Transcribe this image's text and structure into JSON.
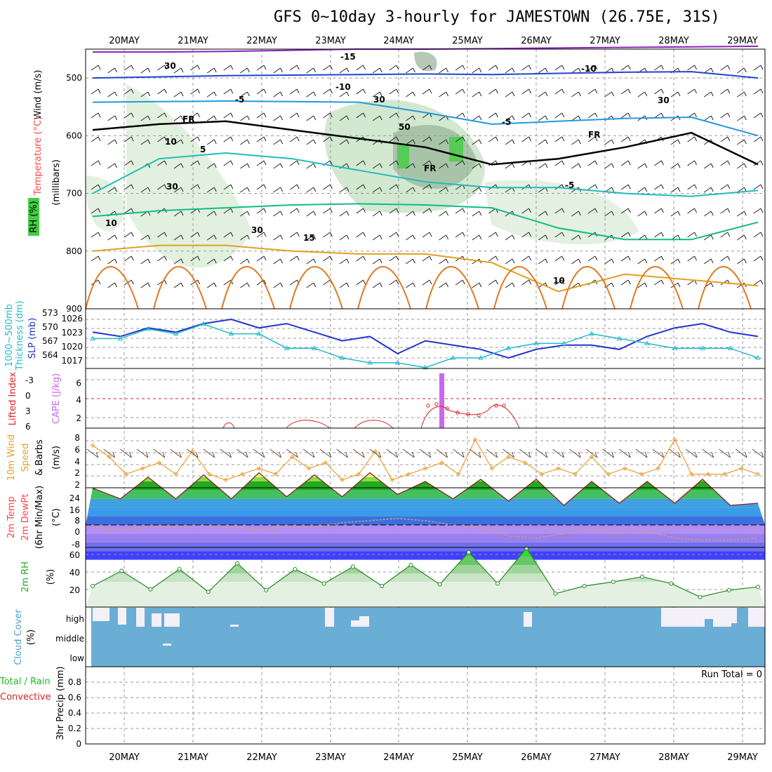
{
  "title": "GFS 0~10day 3-hourly for JAMESTOWN (26.75E, 31S)",
  "colors": {
    "wind_text": "#ff8800",
    "temp_text": "#ff4444",
    "rh_green": "#44cc44",
    "slp": "#2233cc",
    "thickness": "#22bbcc",
    "cape": "#cc66ee",
    "lifted": "#dd2222",
    "wind10": "#e8a030",
    "rain_total": "#22bb22",
    "cloud": "#6aaed6"
  },
  "chart_data": {
    "type": "line",
    "dates": [
      "20MAY",
      "21MAY",
      "22MAY",
      "23MAY",
      "24MAY",
      "25MAY",
      "26MAY",
      "27MAY",
      "28MAY",
      "29MAY"
    ],
    "panels": [
      {
        "id": "upper_air",
        "ylabel": [
          "Wind (m/s)",
          "Temperature (°C)",
          "RH (%)",
          "(millibars)"
        ],
        "yticks": [
          "500",
          "600",
          "700",
          "800",
          "900"
        ],
        "ylim": [
          900,
          450
        ],
        "contour_labels": [
          "-15",
          "-10",
          "-10",
          "-5",
          "-5",
          "-5",
          "5",
          "10",
          "10",
          "15",
          "FR",
          "FR",
          "FR",
          "30",
          "30",
          "30",
          "30",
          "30",
          "10",
          "50"
        ],
        "isotherms": [
          {
            "label": "-15",
            "values": [
              455,
              455,
              454,
              452,
              450,
              450,
              449,
              448,
              447,
              446,
              445
            ]
          },
          {
            "label": "-10",
            "values": [
              500,
              498,
              496,
              495,
              494,
              493,
              494,
              492,
              490,
              489,
              500
            ]
          },
          {
            "label": "-5",
            "values": [
              542,
              541,
              540,
              541,
              542,
              560,
              580,
              575,
              570,
              568,
              600
            ]
          },
          {
            "label": "FR",
            "values": [
              590,
              580,
              575,
              590,
              605,
              620,
              650,
              640,
              620,
              595,
              650
            ]
          },
          {
            "label": "5",
            "values": [
              700,
              640,
              630,
              640,
              660,
              680,
              690,
              690,
              700,
              705,
              695
            ]
          },
          {
            "label": "10",
            "values": [
              740,
              730,
              725,
              720,
              718,
              720,
              725,
              760,
              780,
              780,
              750
            ]
          },
          {
            "label": "15",
            "values": [
              800,
              790,
              790,
              800,
              805,
              805,
              820,
              870,
              840,
              850,
              860
            ]
          }
        ]
      },
      {
        "id": "slp_thickness",
        "ylabel_left": [
          "1000~500mb",
          "Thickness (dm)"
        ],
        "ylabel_right": "SLP (mb)",
        "yticks_left": [
          "573",
          "570",
          "567",
          "564"
        ],
        "yticks_right": [
          "1026",
          "1023",
          "1020",
          "1017"
        ],
        "series": [
          {
            "name": "SLP (mb)",
            "values": [
              1023,
              1022,
              1024,
              1023,
              1025,
              1026,
              1024,
              1025,
              1023,
              1021,
              1022,
              1018,
              1021,
              1020,
              1019,
              1017,
              1019,
              1020,
              1020,
              1019,
              1022,
              1024,
              1025,
              1023,
              1022
            ]
          },
          {
            "name": "Thickness (dm)",
            "values": [
              568,
              568,
              570,
              569,
              571,
              569,
              569,
              566,
              566,
              564,
              563,
              563,
              562,
              564,
              564,
              566,
              567,
              567,
              569,
              568,
              567,
              566,
              566,
              566,
              564
            ]
          }
        ]
      },
      {
        "id": "cape_li",
        "ylabel_left": "Lifted Index",
        "ylabel_right": "CAPE (J/kg)",
        "yticks_left": [
          "-3",
          "0",
          "3",
          "6"
        ],
        "yticks_right": [
          "6",
          "4",
          "2"
        ],
        "series": [
          {
            "name": "CAPE (J/kg)",
            "x_day": 4.6,
            "value": 7.5
          },
          {
            "name": "Lifted Index",
            "values": [
              null,
              null,
              null,
              null,
              null,
              5,
              null,
              null,
              5,
              null,
              3,
              null,
              4,
              null,
              null,
              3,
              0,
              1,
              2,
              1,
              null,
              null,
              null,
              null,
              null
            ]
          }
        ]
      },
      {
        "id": "wind10",
        "ylabel": [
          "10m Wind",
          "Speed",
          "(m/s)",
          "& Barbs"
        ],
        "yticks": [
          "8",
          "6",
          "4",
          "2",
          "2"
        ],
        "series": [
          {
            "name": "Speed",
            "values": [
              7,
              5,
              2,
              3,
              4,
              2,
              6,
              2,
              1,
              2,
              3,
              2,
              5,
              3,
              4,
              1,
              2,
              6,
              1,
              2,
              3,
              4,
              2,
              8,
              3,
              5,
              4,
              2,
              3,
              2,
              5,
              2,
              3,
              2,
              3,
              8,
              2,
              2,
              2,
              3,
              2
            ]
          }
        ]
      },
      {
        "id": "temp2m",
        "ylabel": [
          "2m Temp",
          "2m DewPt",
          "(6hr Min/Max)",
          "(°C)"
        ],
        "yticks": [
          "24",
          "16",
          "8",
          "0",
          "-8"
        ],
        "series": [
          {
            "name": "2m Temp",
            "values": [
              17,
              12,
              22,
              12,
              23,
              12,
              24,
              13,
              23,
              13,
              24,
              14,
              20,
              12,
              21,
              11,
              21,
              9,
              20,
              10,
              20,
              10,
              21,
              9,
              10
            ]
          },
          {
            "name": "2m DewPt",
            "values": [
              -1,
              -2,
              -1,
              -1,
              0,
              -1,
              -2,
              -1,
              -1,
              1,
              2,
              3,
              2,
              0,
              -1,
              -5,
              -6,
              -4,
              -2,
              -4,
              -3,
              -6,
              -7,
              -7,
              -6
            ]
          }
        ]
      },
      {
        "id": "rh2m",
        "ylabel": [
          "2m RH",
          "(%)"
        ],
        "yticks": [
          "60",
          "40",
          "20"
        ],
        "series": [
          {
            "name": "2m RH",
            "values": [
              25,
              43,
              21,
              45,
              18,
              52,
              20,
              45,
              28,
              48,
              25,
              50,
              27,
              65,
              28,
              70,
              16,
              25,
              30,
              36,
              28,
              12,
              20,
              24
            ]
          }
        ]
      },
      {
        "id": "cloud",
        "ylabel": [
          "Cloud Cover",
          "(%)"
        ],
        "levels": [
          "high",
          "middle",
          "low"
        ]
      },
      {
        "id": "precip",
        "ylabel_left": [
          "Total / Rain",
          "Convective"
        ],
        "ylabel_right": [
          "3hr Precip (mm)"
        ],
        "yticks": [
          "0.8",
          "0.6",
          "0.4",
          "0.2",
          "0"
        ],
        "run_total_label": "Run Total = 0"
      }
    ]
  }
}
